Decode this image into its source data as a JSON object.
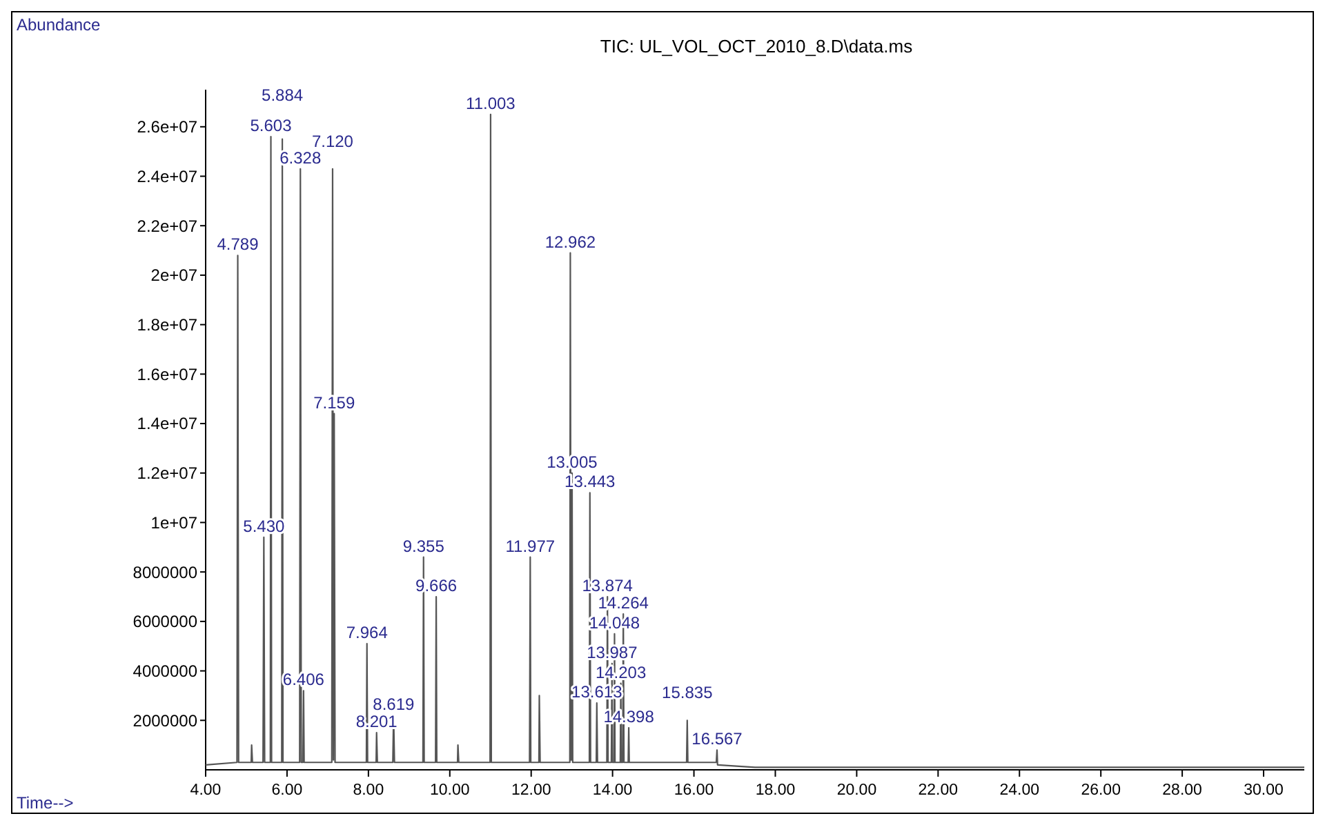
{
  "chart_data": {
    "type": "line",
    "title": "TIC: UL_VOL_OCT_2010_8.D\\data.ms",
    "ylabel": "Abundance",
    "xlabel": "Time-->",
    "xlim": [
      4,
      31
    ],
    "xticks": [
      {
        "value": 4,
        "label": "4.00"
      },
      {
        "value": 6,
        "label": "6.00"
      },
      {
        "value": 8,
        "label": "8.00"
      },
      {
        "value": 10,
        "label": "10.00"
      },
      {
        "value": 12,
        "label": "12.00"
      },
      {
        "value": 14,
        "label": "14.00"
      },
      {
        "value": 16,
        "label": "16.00"
      },
      {
        "value": 18,
        "label": "18.00"
      },
      {
        "value": 20,
        "label": "20.00"
      },
      {
        "value": 22,
        "label": "22.00"
      },
      {
        "value": 24,
        "label": "24.00"
      },
      {
        "value": 26,
        "label": "26.00"
      },
      {
        "value": 28,
        "label": "28.00"
      },
      {
        "value": 30,
        "label": "30.00"
      }
    ],
    "ylim": [
      0,
      27500000
    ],
    "yticks": [
      {
        "value": 2000000,
        "label": "2000000"
      },
      {
        "value": 4000000,
        "label": "4000000"
      },
      {
        "value": 6000000,
        "label": "6000000"
      },
      {
        "value": 8000000,
        "label": "8000000"
      },
      {
        "value": 10000000,
        "label": "1e+07"
      },
      {
        "value": 12000000,
        "label": "1.2e+07"
      },
      {
        "value": 14000000,
        "label": "1.4e+07"
      },
      {
        "value": 16000000,
        "label": "1.6e+07"
      },
      {
        "value": 18000000,
        "label": "1.8e+07"
      },
      {
        "value": 20000000,
        "label": "2e+07"
      },
      {
        "value": 22000000,
        "label": "2.2e+07"
      },
      {
        "value": 24000000,
        "label": "2.4e+07"
      },
      {
        "value": 26000000,
        "label": "2.6e+07"
      }
    ],
    "grid": false,
    "marker": "none",
    "line_style": "solid",
    "series": [
      {
        "color": "#555555",
        "x": [
          4.0,
          4.77,
          4.789,
          4.81,
          5.12,
          5.13,
          5.15,
          5.41,
          5.43,
          5.45,
          5.59,
          5.603,
          5.62,
          5.87,
          5.884,
          5.9,
          6.31,
          6.328,
          6.35,
          6.39,
          6.406,
          6.42,
          7.1,
          7.12,
          7.14,
          7.159,
          7.18,
          7.95,
          7.964,
          7.98,
          8.19,
          8.201,
          8.22,
          8.6,
          8.619,
          8.64,
          9.34,
          9.355,
          9.37,
          9.65,
          9.666,
          9.68,
          10.19,
          10.2,
          10.22,
          10.99,
          11.003,
          11.02,
          11.96,
          11.977,
          11.99,
          12.19,
          12.2,
          12.22,
          12.95,
          12.962,
          12.98,
          12.99,
          13.005,
          13.02,
          13.43,
          13.443,
          13.46,
          13.6,
          13.613,
          13.63,
          13.86,
          13.874,
          13.89,
          13.97,
          13.987,
          14.0,
          14.04,
          14.048,
          14.06,
          14.19,
          14.203,
          14.215,
          14.25,
          14.264,
          14.28,
          14.385,
          14.398,
          14.41,
          15.82,
          15.835,
          15.85,
          16.55,
          16.567,
          16.58,
          17.5,
          31.0
        ],
        "values": [
          200000,
          300000,
          20800000,
          300000,
          300000,
          1000000,
          300000,
          300000,
          9400000,
          300000,
          300000,
          25600000,
          300000,
          300000,
          25500000,
          300000,
          300000,
          24300000,
          300000,
          300000,
          3200000,
          300000,
          300000,
          24300000,
          400000,
          14400000,
          300000,
          300000,
          5100000,
          300000,
          300000,
          1500000,
          300000,
          300000,
          2200000,
          300000,
          300000,
          8600000,
          300000,
          300000,
          7000000,
          300000,
          300000,
          1000000,
          300000,
          300000,
          26500000,
          300000,
          300000,
          8600000,
          300000,
          300000,
          3000000,
          300000,
          300000,
          20900000,
          400000,
          400000,
          12000000,
          300000,
          300000,
          11200000,
          300000,
          300000,
          2700000,
          300000,
          300000,
          7000000,
          300000,
          300000,
          4300000,
          300000,
          300000,
          5500000,
          300000,
          300000,
          3500000,
          300000,
          300000,
          6300000,
          300000,
          300000,
          1700000,
          300000,
          300000,
          2000000,
          300000,
          300000,
          800000,
          200000,
          100000,
          100000
        ]
      }
    ],
    "annotations": [
      {
        "text": "4.789",
        "x": 4.789,
        "y": 20800000
      },
      {
        "text": "5.430",
        "x": 5.43,
        "y": 9400000
      },
      {
        "text": "5.603",
        "x": 5.603,
        "y": 25600000
      },
      {
        "text": "5.884",
        "x": 5.884,
        "y": 25500000
      },
      {
        "text": "6.328",
        "x": 6.328,
        "y": 24300000
      },
      {
        "text": "6.406",
        "x": 6.406,
        "y": 3200000
      },
      {
        "text": "7.120",
        "x": 7.12,
        "y": 24300000
      },
      {
        "text": "7.159",
        "x": 7.159,
        "y": 14400000
      },
      {
        "text": "7.964",
        "x": 7.964,
        "y": 5100000
      },
      {
        "text": "8.201",
        "x": 8.201,
        "y": 1500000
      },
      {
        "text": "8.619",
        "x": 8.619,
        "y": 2200000
      },
      {
        "text": "9.355",
        "x": 9.355,
        "y": 8600000
      },
      {
        "text": "9.666",
        "x": 9.666,
        "y": 7000000
      },
      {
        "text": "11.003",
        "x": 11.003,
        "y": 26500000
      },
      {
        "text": "11.977",
        "x": 11.977,
        "y": 8600000
      },
      {
        "text": "12.962",
        "x": 12.962,
        "y": 20900000
      },
      {
        "text": "13.005",
        "x": 13.005,
        "y": 12000000
      },
      {
        "text": "13.443",
        "x": 13.443,
        "y": 11200000
      },
      {
        "text": "13.613",
        "x": 13.613,
        "y": 2700000
      },
      {
        "text": "13.874",
        "x": 13.874,
        "y": 7000000
      },
      {
        "text": "13.987",
        "x": 13.987,
        "y": 4300000
      },
      {
        "text": "14.048",
        "x": 14.048,
        "y": 5500000
      },
      {
        "text": "14.203",
        "x": 14.203,
        "y": 3500000
      },
      {
        "text": "14.264",
        "x": 14.264,
        "y": 6300000
      },
      {
        "text": "14.398",
        "x": 14.398,
        "y": 1700000
      },
      {
        "text": "15.835",
        "x": 15.835,
        "y": 2000000
      },
      {
        "text": "16.567",
        "x": 16.567,
        "y": 800000
      }
    ]
  }
}
